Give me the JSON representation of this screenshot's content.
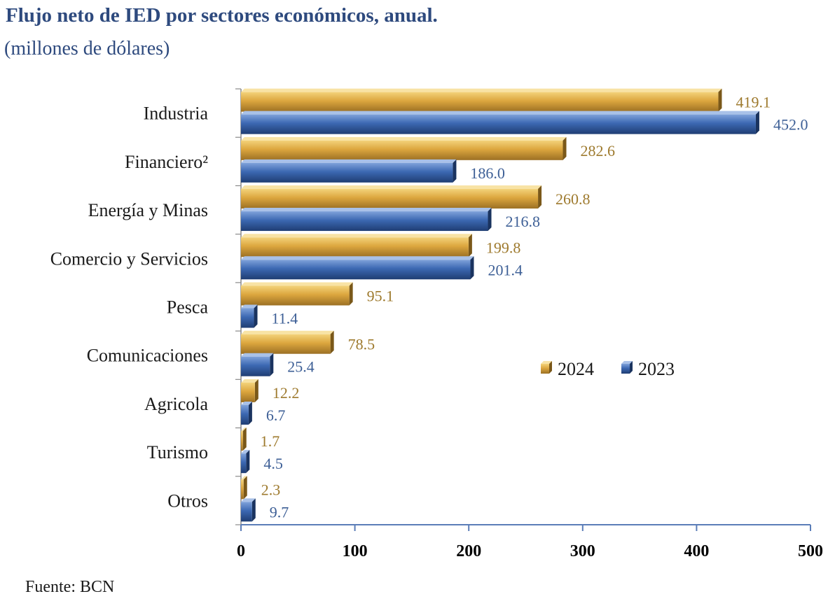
{
  "header": {
    "title": "Flujo neto de IED por sectores económicos, anual.",
    "subtitle": "(millones de dólares)"
  },
  "footer": {
    "source": "Fuente: BCN"
  },
  "chart_data": {
    "type": "bar",
    "orientation": "horizontal",
    "title": "Flujo neto de IED por sectores económicos, anual.",
    "subtitle": "(millones de dólares)",
    "categories": [
      "Industria",
      "Financiero²",
      "Energía y Minas",
      "Comercio y Servicios",
      "Pesca",
      "Comunicaciones",
      "Agricola",
      "Turismo",
      "Otros"
    ],
    "series": [
      {
        "name": "2024",
        "color": "#D9A53C",
        "values": [
          419.1,
          282.6,
          260.8,
          199.8,
          95.1,
          78.5,
          12.2,
          1.7,
          2.3
        ],
        "labels": [
          "419.1",
          "282.6",
          "260.8",
          "199.8",
          "95.1",
          "78.5",
          "12.2",
          "1.7",
          "2.3"
        ]
      },
      {
        "name": "2023",
        "color": "#3A66B0",
        "values": [
          452.0,
          186.0,
          216.8,
          201.4,
          11.4,
          25.4,
          6.7,
          4.5,
          9.7
        ],
        "labels": [
          "452.0",
          "186.0",
          "216.8",
          "201.4",
          "11.4",
          "25.4",
          "6.7",
          "4.5",
          "9.7"
        ]
      }
    ],
    "xlim": [
      0,
      500
    ],
    "xticks": [
      "0",
      "100",
      "200",
      "300",
      "400",
      "500"
    ],
    "grid": false,
    "legend_position": "right-middle",
    "label_colors": {
      "2024": "#9E7A2E",
      "2023": "#3D5F96"
    }
  }
}
